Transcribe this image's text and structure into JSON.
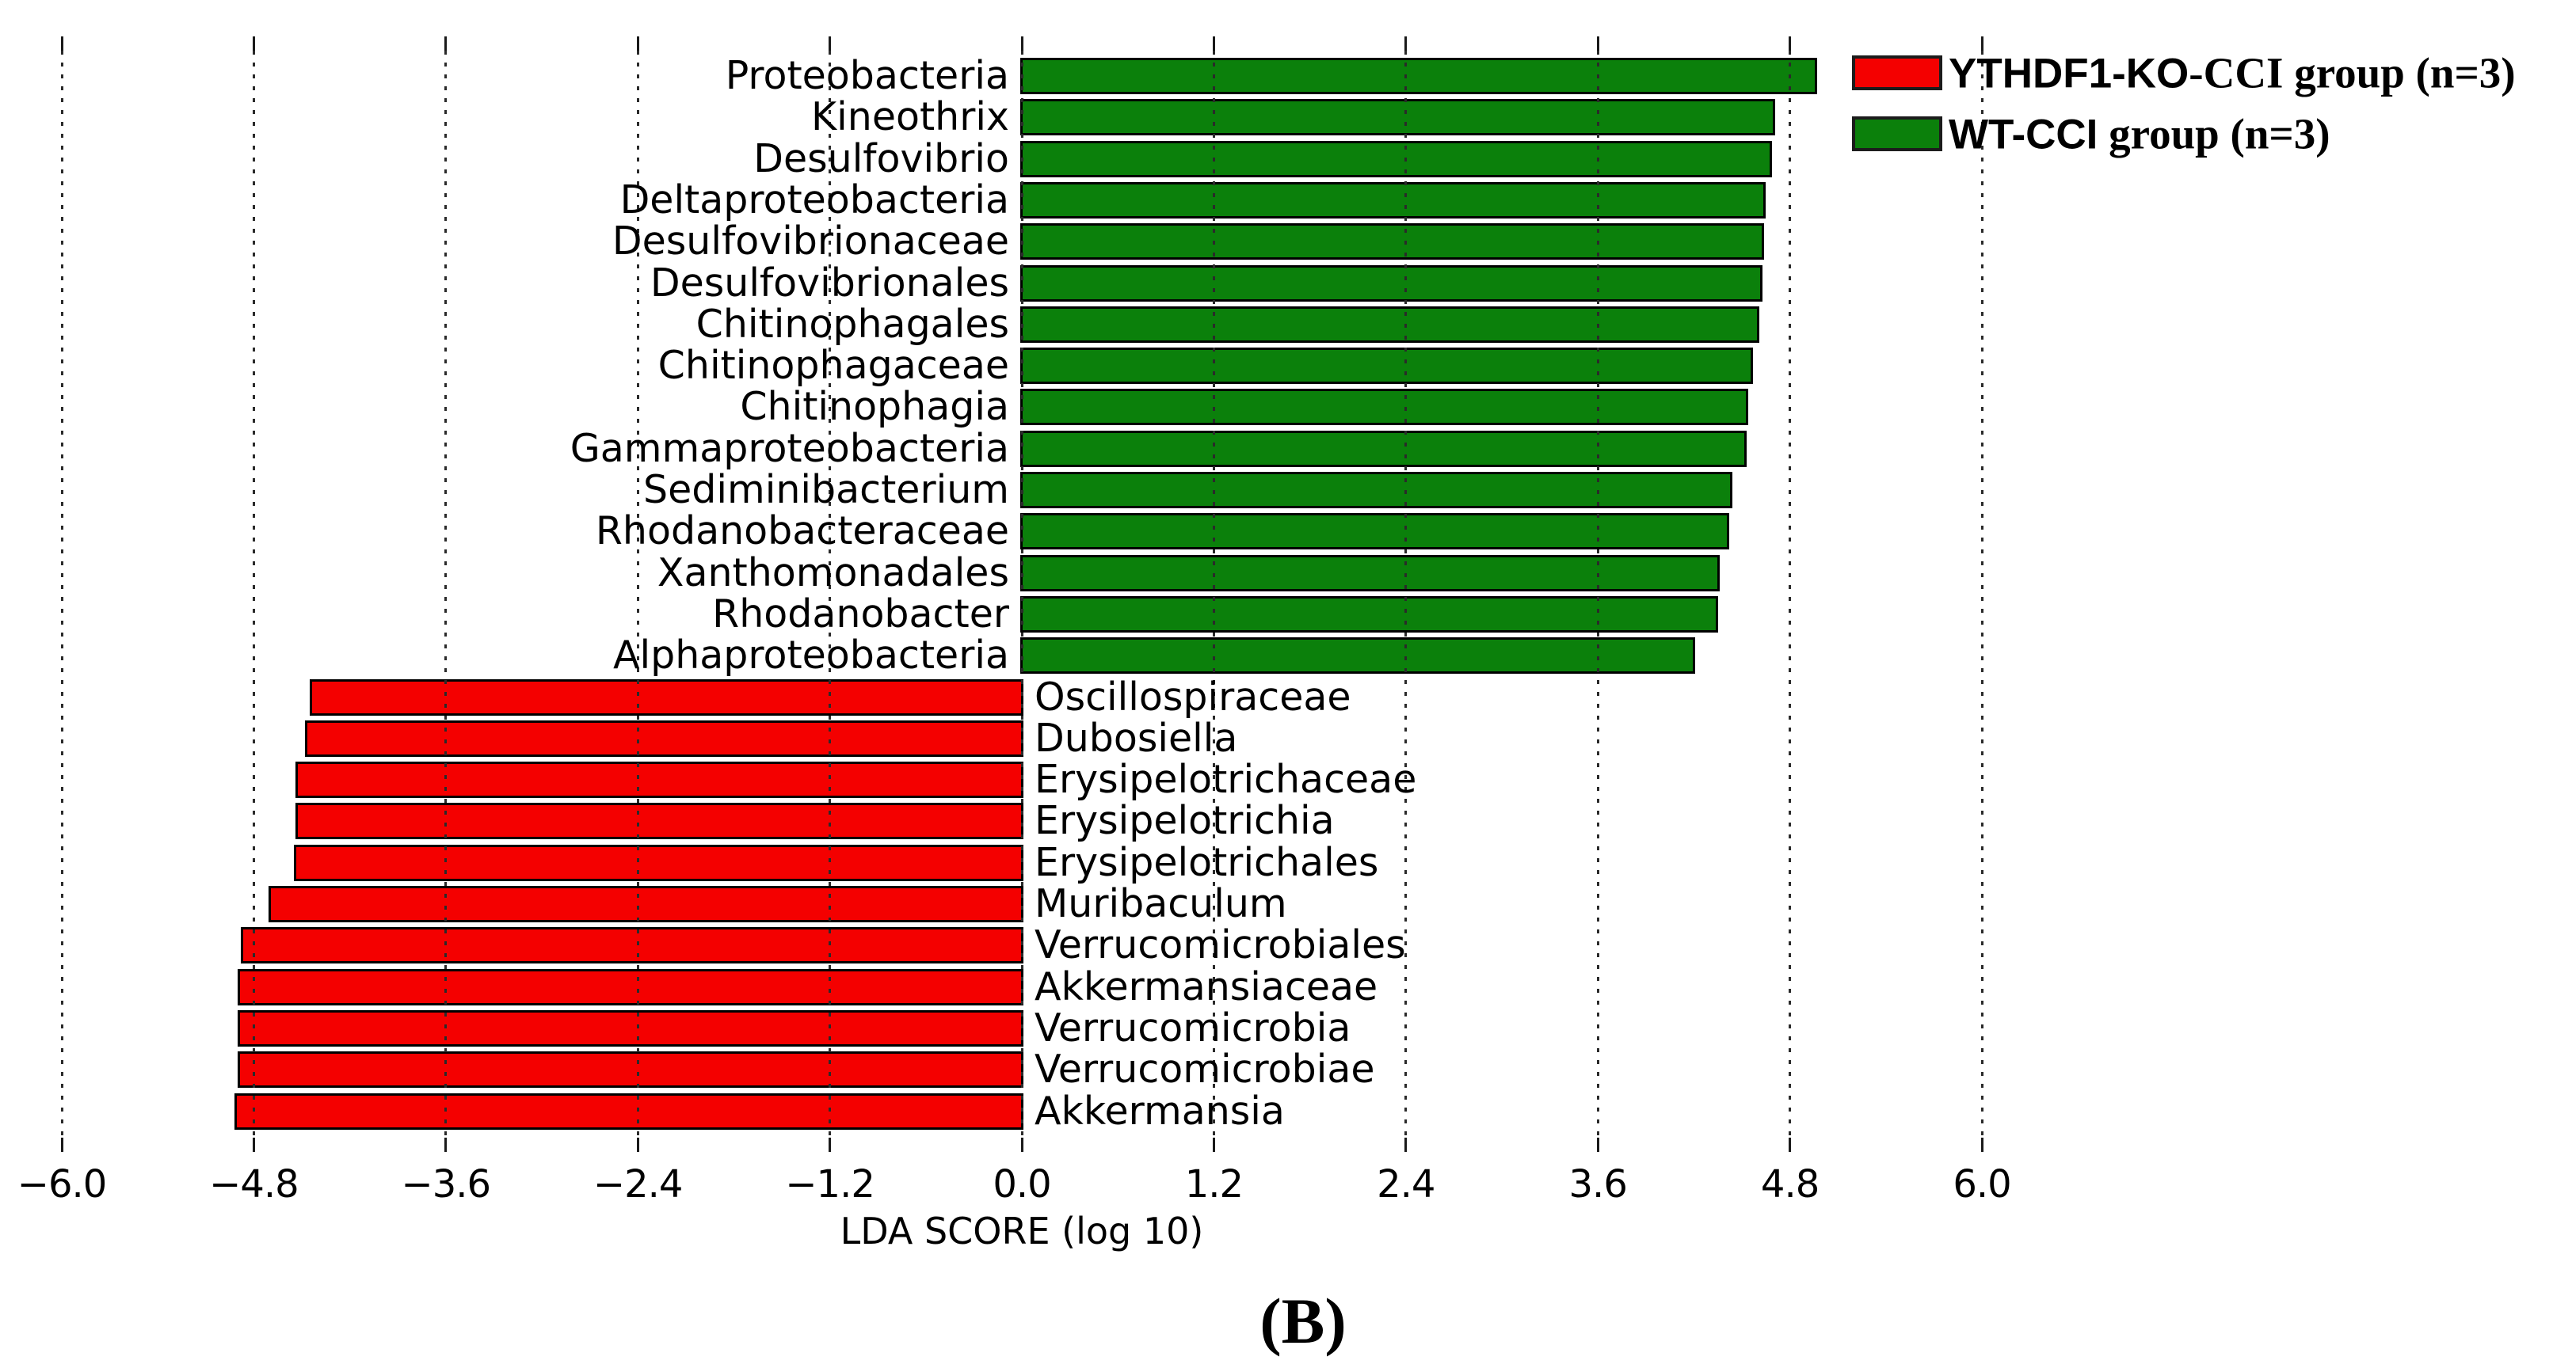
{
  "figure": {
    "caption": "(B)"
  },
  "axis": {
    "label": "LDA SCORE (log 10)",
    "tick_labels": [
      "−6.0",
      "−4.8",
      "−3.6",
      "−2.4",
      "−1.2",
      "0.0",
      "1.2",
      "2.4",
      "3.6",
      "4.8",
      "6.0"
    ],
    "tick_values": [
      -6.0,
      -4.8,
      -3.6,
      -2.4,
      -1.2,
      0.0,
      1.2,
      2.4,
      3.6,
      4.8,
      6.0
    ]
  },
  "legend": {
    "items": [
      {
        "color": "#f40000",
        "label_prefix": "YTHDF1-KO",
        "label_suffix": "-CCI group (n=3)",
        "full_label": "YTHDF1-KO-CCI group (n=3)"
      },
      {
        "color": "#0b800b",
        "label_prefix": "WT-CCI",
        "label_suffix": " group (n=3)",
        "full_label": "WT-CCI group (n=3)"
      }
    ]
  },
  "chart_data": {
    "type": "bar",
    "orientation": "horizontal",
    "title": "",
    "xlabel": "LDA SCORE (log 10)",
    "xlim": [
      -6.0,
      6.0
    ],
    "x_ticks": [
      -6.0,
      -4.8,
      -3.6,
      -2.4,
      -1.2,
      0.0,
      1.2,
      2.4,
      3.6,
      4.8,
      6.0
    ],
    "grid": "dotted-vertical",
    "legend_position": "top-right",
    "groups": [
      {
        "name": "WT-CCI group (n=3)",
        "color": "#0b800b",
        "sign": "positive"
      },
      {
        "name": "YTHDF1-KO-CCI group (n=3)",
        "color": "#f40000",
        "sign": "negative"
      }
    ],
    "bars": [
      {
        "label": "Proteobacteria",
        "value": 4.97,
        "group": "WT-CCI group (n=3)"
      },
      {
        "label": "Kineothrix",
        "value": 4.71,
        "group": "WT-CCI group (n=3)"
      },
      {
        "label": "Desulfovibrio",
        "value": 4.69,
        "group": "WT-CCI group (n=3)"
      },
      {
        "label": "Deltaproteobacteria",
        "value": 4.65,
        "group": "WT-CCI group (n=3)"
      },
      {
        "label": "Desulfovibrionaceae",
        "value": 4.64,
        "group": "WT-CCI group (n=3)"
      },
      {
        "label": "Desulfovibrionales",
        "value": 4.63,
        "group": "WT-CCI group (n=3)"
      },
      {
        "label": "Chitinophagales",
        "value": 4.61,
        "group": "WT-CCI group (n=3)"
      },
      {
        "label": "Chitinophagaceae",
        "value": 4.57,
        "group": "WT-CCI group (n=3)"
      },
      {
        "label": "Chitinophagia",
        "value": 4.54,
        "group": "WT-CCI group (n=3)"
      },
      {
        "label": "Gammaproteobacteria",
        "value": 4.53,
        "group": "WT-CCI group (n=3)"
      },
      {
        "label": "Sediminibacterium",
        "value": 4.44,
        "group": "WT-CCI group (n=3)"
      },
      {
        "label": "Rhodanobacteraceae",
        "value": 4.42,
        "group": "WT-CCI group (n=3)"
      },
      {
        "label": "Xanthomonadales",
        "value": 4.36,
        "group": "WT-CCI group (n=3)"
      },
      {
        "label": "Rhodanobacter",
        "value": 4.35,
        "group": "WT-CCI group (n=3)"
      },
      {
        "label": "Alphaproteobacteria",
        "value": 4.21,
        "group": "WT-CCI group (n=3)"
      },
      {
        "label": "Oscillospiraceae",
        "value": -4.45,
        "group": "YTHDF1-KO-CCI group (n=3)"
      },
      {
        "label": "Dubosiella",
        "value": -4.48,
        "group": "YTHDF1-KO-CCI group (n=3)"
      },
      {
        "label": "Erysipelotrichaceae",
        "value": -4.54,
        "group": "YTHDF1-KO-CCI group (n=3)"
      },
      {
        "label": "Erysipelotrichia",
        "value": -4.54,
        "group": "YTHDF1-KO-CCI group (n=3)"
      },
      {
        "label": "Erysipelotrichales",
        "value": -4.55,
        "group": "YTHDF1-KO-CCI group (n=3)"
      },
      {
        "label": "Muribaculum",
        "value": -4.71,
        "group": "YTHDF1-KO-CCI group (n=3)"
      },
      {
        "label": "Verrucomicrobiales",
        "value": -4.88,
        "group": "YTHDF1-KO-CCI group (n=3)"
      },
      {
        "label": "Akkermansiaceae",
        "value": -4.9,
        "group": "YTHDF1-KO-CCI group (n=3)"
      },
      {
        "label": "Verrucomicrobia",
        "value": -4.9,
        "group": "YTHDF1-KO-CCI group (n=3)"
      },
      {
        "label": "Verrucomicrobiae",
        "value": -4.9,
        "group": "YTHDF1-KO-CCI group (n=3)"
      },
      {
        "label": "Akkermansia",
        "value": -4.92,
        "group": "YTHDF1-KO-CCI group (n=3)"
      }
    ]
  }
}
